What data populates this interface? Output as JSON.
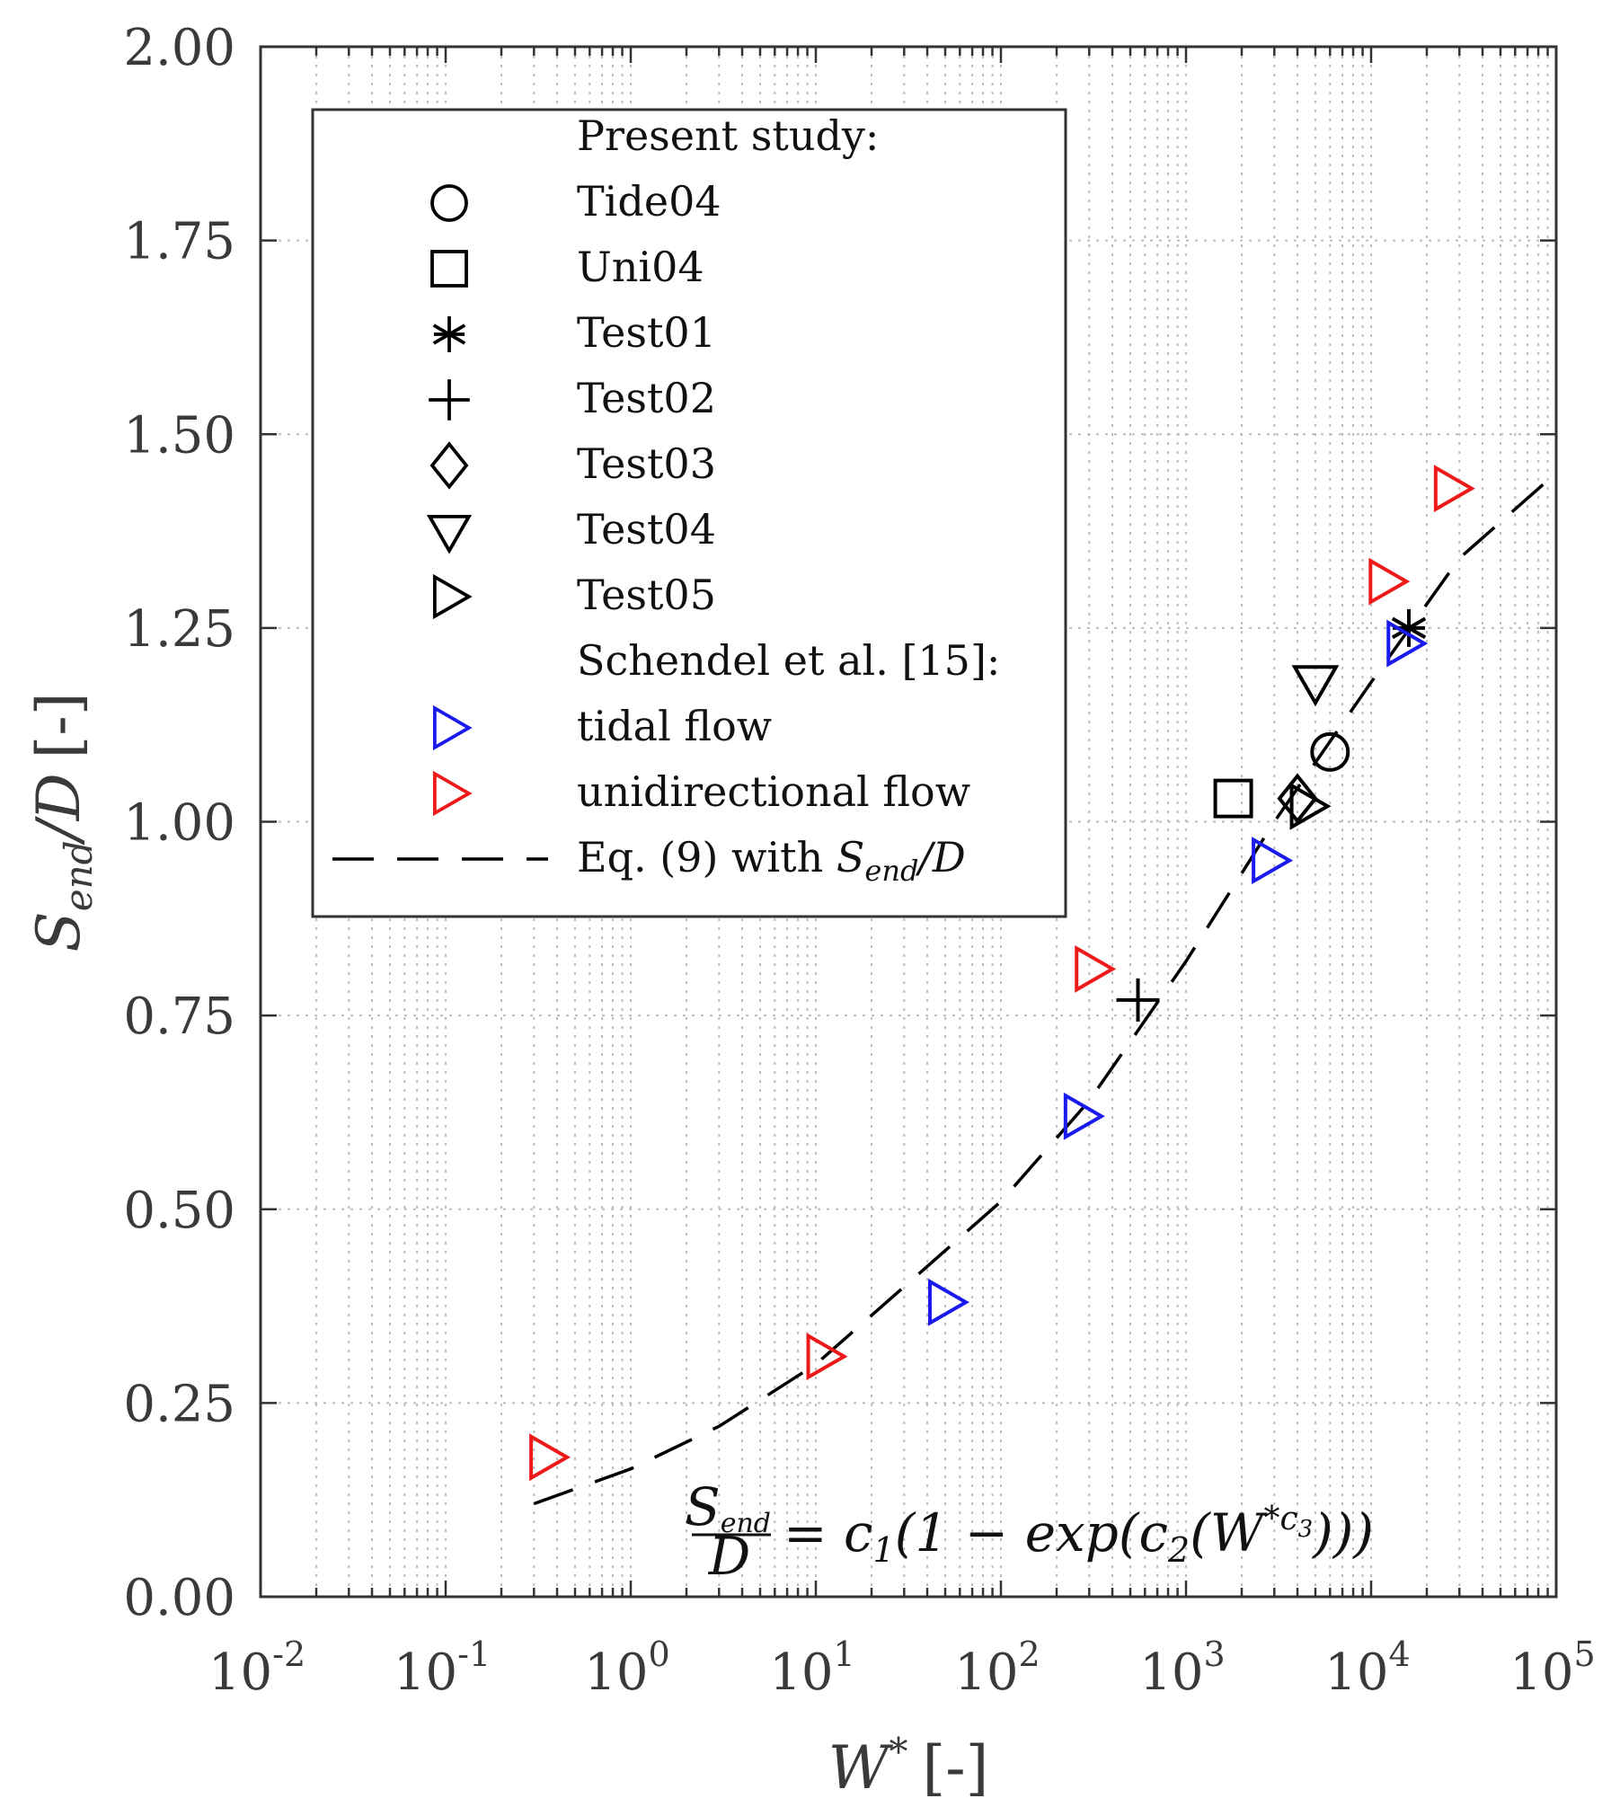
{
  "chart_data": {
    "type": "scatter",
    "x_scale": "log",
    "xlim": [
      0.01,
      100000
    ],
    "ylim": [
      0,
      2
    ],
    "x_tick_labels": [
      {
        "value": 0.01,
        "base": "10",
        "exp": "-2"
      },
      {
        "value": 0.1,
        "base": "10",
        "exp": "-1"
      },
      {
        "value": 1,
        "base": "10",
        "exp": "0"
      },
      {
        "value": 10,
        "base": "10",
        "exp": "1"
      },
      {
        "value": 100,
        "base": "10",
        "exp": "2"
      },
      {
        "value": 1000,
        "base": "10",
        "exp": "3"
      },
      {
        "value": 10000,
        "base": "10",
        "exp": "4"
      },
      {
        "value": 100000,
        "base": "10",
        "exp": "5"
      }
    ],
    "y_tick_labels": [
      "0.00",
      "0.25",
      "0.50",
      "0.75",
      "1.00",
      "1.25",
      "1.50",
      "1.75",
      "2.00"
    ],
    "xlabel": {
      "main": "W",
      "sup": "*",
      "unit": "[-]"
    },
    "ylabel": {
      "main": "S",
      "sub": "end",
      "rest": "/D",
      "unit": "[-]"
    },
    "grid": true,
    "legend_position": "top-left",
    "legend": [
      {
        "label": "Present study:",
        "marker": "none",
        "color": "#000000"
      },
      {
        "label": "Tide04",
        "marker": "circle",
        "color": "#000000"
      },
      {
        "label": "Uni04",
        "marker": "square",
        "color": "#000000"
      },
      {
        "label": "Test01",
        "marker": "asterisk",
        "color": "#000000"
      },
      {
        "label": "Test02",
        "marker": "plus",
        "color": "#000000"
      },
      {
        "label": "Test03",
        "marker": "diamond",
        "color": "#000000"
      },
      {
        "label": "Test04",
        "marker": "triangle-down",
        "color": "#000000"
      },
      {
        "label": "Test05",
        "marker": "triangle-right",
        "color": "#000000"
      },
      {
        "label": "Schendel et al. [15]:",
        "marker": "none",
        "color": "#000000"
      },
      {
        "label": "tidal flow",
        "marker": "triangle-right",
        "color": "#1a1aee"
      },
      {
        "label": "unidirectional flow",
        "marker": "triangle-right",
        "color": "#ee1a1a"
      },
      {
        "label": "Eq. (9) with ",
        "label_math": "S_end/D",
        "marker": "dash",
        "color": "#000000"
      }
    ],
    "series": [
      {
        "name": "Tide04",
        "marker": "circle",
        "color": "#000000",
        "points": [
          {
            "x": 6000,
            "y": 1.09
          }
        ]
      },
      {
        "name": "Uni04",
        "marker": "square",
        "color": "#000000",
        "points": [
          {
            "x": 1800,
            "y": 1.03
          }
        ]
      },
      {
        "name": "Test01",
        "marker": "asterisk",
        "color": "#000000",
        "points": [
          {
            "x": 16000,
            "y": 1.25
          }
        ]
      },
      {
        "name": "Test02",
        "marker": "plus",
        "color": "#000000",
        "points": [
          {
            "x": 550,
            "y": 0.77
          }
        ]
      },
      {
        "name": "Test03",
        "marker": "diamond",
        "color": "#000000",
        "points": [
          {
            "x": 4000,
            "y": 1.03
          }
        ]
      },
      {
        "name": "Test04",
        "marker": "triangle-down",
        "color": "#000000",
        "points": [
          {
            "x": 5000,
            "y": 1.18
          }
        ]
      },
      {
        "name": "Test05",
        "marker": "triangle-right",
        "color": "#000000",
        "points": [
          {
            "x": 4500,
            "y": 1.02
          }
        ]
      },
      {
        "name": "tidal flow",
        "marker": "triangle-right",
        "color": "#1a1aee",
        "points": [
          {
            "x": 50,
            "y": 0.38
          },
          {
            "x": 270,
            "y": 0.62
          },
          {
            "x": 2800,
            "y": 0.95
          },
          {
            "x": 15000,
            "y": 1.23
          }
        ]
      },
      {
        "name": "unidirectional flow",
        "marker": "triangle-right",
        "color": "#ee1a1a",
        "points": [
          {
            "x": 0.35,
            "y": 0.18
          },
          {
            "x": 11,
            "y": 0.31
          },
          {
            "x": 310,
            "y": 0.81
          },
          {
            "x": 12000,
            "y": 1.31
          },
          {
            "x": 27000,
            "y": 1.43
          }
        ]
      }
    ],
    "fit_curve": {
      "name": "Eq. (9) with S_end/D",
      "style": "dashed",
      "color": "#000000",
      "points": [
        {
          "x": 0.3,
          "y": 0.12
        },
        {
          "x": 1,
          "y": 0.165
        },
        {
          "x": 3,
          "y": 0.22
        },
        {
          "x": 10,
          "y": 0.3
        },
        {
          "x": 30,
          "y": 0.4
        },
        {
          "x": 100,
          "y": 0.51
        },
        {
          "x": 300,
          "y": 0.64
        },
        {
          "x": 1000,
          "y": 0.82
        },
        {
          "x": 3000,
          "y": 1.0
        },
        {
          "x": 10000,
          "y": 1.18
        },
        {
          "x": 30000,
          "y": 1.34
        },
        {
          "x": 100000,
          "y": 1.45
        }
      ]
    },
    "annotation": {
      "frac_num": "S",
      "frac_num_sub": "end",
      "frac_den": "D",
      "rhs": "= c",
      "rhs_sub": "1",
      "rhs_mid": "(1 − exp(c",
      "rhs_sub2": "2",
      "rhs_mid2": "(W",
      "rhs_sup": "*c",
      "rhs_sup_sub": "3",
      "rhs_end": ")))",
      "position": "bottom-right"
    }
  }
}
